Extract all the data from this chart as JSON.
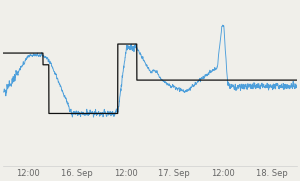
{
  "background_color": "#f0efea",
  "plot_background": "#f0efea",
  "grid_color": "#d0d0d0",
  "line_blue_color": "#4d9fdb",
  "line_black_color": "#111111",
  "x_tick_labels": [
    "12:00",
    "16. Sep",
    "12:00",
    "17. Sep",
    "12:00",
    "18. Sep"
  ],
  "x_tick_positions": [
    0.083,
    0.25,
    0.417,
    0.583,
    0.75,
    0.917
  ],
  "ylim_min": 14,
  "ylim_max": 32,
  "total_points": 2000
}
